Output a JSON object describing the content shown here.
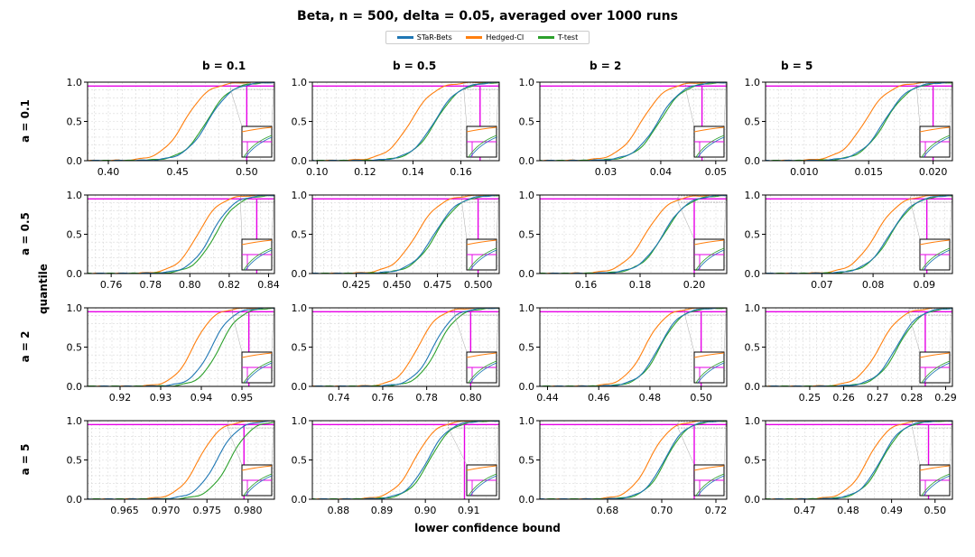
{
  "figure": {
    "title": "Beta,  n = 500,  delta = 0.05, averaged over 1000 runs",
    "xlabel": "lower confidence bound",
    "ylabel": "quantile"
  },
  "legend": [
    {
      "label": "STaR-Bets",
      "color": "#1f77b4"
    },
    {
      "label": "Hedged-CI",
      "color": "#ff7f0e"
    },
    {
      "label": "T-test",
      "color": "#2ca02c"
    }
  ],
  "colors": {
    "quantile_line": "#e600e6",
    "grid": "#d9d9d9"
  },
  "column_titles": [
    "b = 0.1",
    "b = 0.5",
    "b = 2",
    "b = 5"
  ],
  "row_titles": [
    "a = 0.1",
    "a = 0.5",
    "a = 2",
    "a = 5"
  ],
  "chart_data": [
    {
      "type": "line",
      "row": 0,
      "col": 0,
      "xlim": [
        0.385,
        0.52
      ],
      "ylim": [
        0,
        1
      ],
      "ticks": [
        0.4,
        0.45,
        0.5
      ],
      "tick_labels": [
        "0.40",
        "0.45",
        "0.50"
      ],
      "yticks": [
        "0.0",
        "0.5",
        "1.0"
      ],
      "quantile_level": 0.95,
      "quantile_x": 0.5,
      "series": [
        {
          "name": "STaR-Bets",
          "median": 0.472,
          "width": 0.0145
        },
        {
          "name": "Hedged-CI",
          "median": 0.455,
          "width": 0.0145
        },
        {
          "name": "T-test",
          "median": 0.471,
          "width": 0.0145
        }
      ]
    },
    {
      "type": "line",
      "row": 0,
      "col": 1,
      "xlim": [
        0.098,
        0.176
      ],
      "ylim": [
        0,
        1
      ],
      "ticks": [
        0.1,
        0.12,
        0.14,
        0.16
      ],
      "tick_labels": [
        "0.10",
        "0.12",
        "0.14",
        "0.16"
      ],
      "yticks": [
        "0.0",
        "0.5",
        "1.0"
      ],
      "quantile_level": 0.95,
      "quantile_x": 0.168,
      "series": [
        {
          "name": "STaR-Bets",
          "median": 0.149,
          "width": 0.0085
        },
        {
          "name": "Hedged-CI",
          "median": 0.139,
          "width": 0.0085
        },
        {
          "name": "T-test",
          "median": 0.1495,
          "width": 0.0085
        }
      ]
    },
    {
      "type": "line",
      "row": 0,
      "col": 2,
      "xlim": [
        0.018,
        0.052
      ],
      "ylim": [
        0,
        1
      ],
      "ticks": [
        0.03,
        0.04,
        0.05
      ],
      "tick_labels": [
        "0.03",
        "0.04",
        "0.05"
      ],
      "yticks": [
        "0.0",
        "0.5",
        "1.0"
      ],
      "quantile_level": 0.95,
      "quantile_x": 0.0475,
      "series": [
        {
          "name": "STaR-Bets",
          "median": 0.0395,
          "width": 0.0037
        },
        {
          "name": "Hedged-CI",
          "median": 0.0365,
          "width": 0.0037
        },
        {
          "name": "T-test",
          "median": 0.0398,
          "width": 0.0037
        }
      ]
    },
    {
      "type": "line",
      "row": 0,
      "col": 3,
      "xlim": [
        0.007,
        0.0215
      ],
      "ylim": [
        0,
        1
      ],
      "ticks": [
        0.01,
        0.015,
        0.02
      ],
      "tick_labels": [
        "0.010",
        "0.015",
        "0.020"
      ],
      "yticks": [
        "0.0",
        "0.5",
        "1.0"
      ],
      "quantile_level": 0.95,
      "quantile_x": 0.02,
      "series": [
        {
          "name": "STaR-Bets",
          "median": 0.0162,
          "width": 0.0016
        },
        {
          "name": "Hedged-CI",
          "median": 0.0147,
          "width": 0.0016
        },
        {
          "name": "T-test",
          "median": 0.0163,
          "width": 0.0016
        }
      ]
    },
    {
      "type": "line",
      "row": 1,
      "col": 0,
      "xlim": [
        0.748,
        0.843
      ],
      "ylim": [
        0,
        1
      ],
      "ticks": [
        0.76,
        0.78,
        0.8,
        0.82,
        0.84
      ],
      "tick_labels": [
        "0.76",
        "0.78",
        "0.80",
        "0.82",
        "0.84"
      ],
      "yticks": [
        "0.0",
        "0.5",
        "1.0"
      ],
      "quantile_level": 0.95,
      "quantile_x": 0.834,
      "series": [
        {
          "name": "STaR-Bets",
          "median": 0.811,
          "width": 0.0095
        },
        {
          "name": "Hedged-CI",
          "median": 0.804,
          "width": 0.0095
        },
        {
          "name": "T-test",
          "median": 0.813,
          "width": 0.0095
        }
      ]
    },
    {
      "type": "line",
      "row": 1,
      "col": 1,
      "xlim": [
        0.398,
        0.513
      ],
      "ylim": [
        0,
        1
      ],
      "ticks": [
        0.425,
        0.45,
        0.475,
        0.5
      ],
      "tick_labels": [
        "0.425",
        "0.450",
        "0.475",
        "0.500"
      ],
      "yticks": [
        "0.0",
        "0.5",
        "1.0"
      ],
      "quantile_level": 0.95,
      "quantile_x": 0.5,
      "series": [
        {
          "name": "STaR-Bets",
          "median": 0.473,
          "width": 0.0125
        },
        {
          "name": "Hedged-CI",
          "median": 0.462,
          "width": 0.0125
        },
        {
          "name": "T-test",
          "median": 0.474,
          "width": 0.0125
        }
      ]
    },
    {
      "type": "line",
      "row": 1,
      "col": 2,
      "xlim": [
        0.143,
        0.212
      ],
      "ylim": [
        0,
        1
      ],
      "ticks": [
        0.16,
        0.18,
        0.2
      ],
      "tick_labels": [
        "0.16",
        "0.18",
        "0.20"
      ],
      "yticks": [
        "0.0",
        "0.5",
        "1.0"
      ],
      "quantile_level": 0.95,
      "quantile_x": 0.2,
      "series": [
        {
          "name": "STaR-Bets",
          "median": 0.1885,
          "width": 0.0075
        },
        {
          "name": "Hedged-CI",
          "median": 0.182,
          "width": 0.0075
        },
        {
          "name": "T-test",
          "median": 0.1888,
          "width": 0.0075
        }
      ]
    },
    {
      "type": "line",
      "row": 1,
      "col": 3,
      "xlim": [
        0.059,
        0.0955
      ],
      "ylim": [
        0,
        1
      ],
      "ticks": [
        0.07,
        0.08,
        0.09
      ],
      "tick_labels": [
        "0.07",
        "0.08",
        "0.09"
      ],
      "yticks": [
        "0.0",
        "0.5",
        "1.0"
      ],
      "quantile_level": 0.95,
      "quantile_x": 0.0905,
      "series": [
        {
          "name": "STaR-Bets",
          "median": 0.0833,
          "width": 0.004
        },
        {
          "name": "Hedged-CI",
          "median": 0.0805,
          "width": 0.004
        },
        {
          "name": "T-test",
          "median": 0.0835,
          "width": 0.004
        }
      ]
    },
    {
      "type": "line",
      "row": 2,
      "col": 0,
      "xlim": [
        0.912,
        0.958
      ],
      "ylim": [
        0,
        1
      ],
      "ticks": [
        0.92,
        0.93,
        0.94,
        0.95
      ],
      "tick_labels": [
        "0.92",
        "0.93",
        "0.94",
        "0.95"
      ],
      "yticks": [
        "0.0",
        "0.5",
        "1.0"
      ],
      "quantile_level": 0.95,
      "quantile_x": 0.9517,
      "series": [
        {
          "name": "STaR-Bets",
          "median": 0.9425,
          "width": 0.0042
        },
        {
          "name": "Hedged-CI",
          "median": 0.938,
          "width": 0.0042
        },
        {
          "name": "T-test",
          "median": 0.9445,
          "width": 0.0042
        }
      ]
    },
    {
      "type": "line",
      "row": 2,
      "col": 1,
      "xlim": [
        0.728,
        0.813
      ],
      "ylim": [
        0,
        1
      ],
      "ticks": [
        0.74,
        0.76,
        0.78,
        0.8
      ],
      "tick_labels": [
        "0.74",
        "0.76",
        "0.78",
        "0.80"
      ],
      "yticks": [
        "0.0",
        "0.5",
        "1.0"
      ],
      "quantile_level": 0.95,
      "quantile_x": 0.8,
      "series": [
        {
          "name": "STaR-Bets",
          "median": 0.783,
          "width": 0.008
        },
        {
          "name": "Hedged-CI",
          "median": 0.776,
          "width": 0.008
        },
        {
          "name": "T-test",
          "median": 0.785,
          "width": 0.008
        }
      ]
    },
    {
      "type": "line",
      "row": 2,
      "col": 2,
      "xlim": [
        0.437,
        0.51
      ],
      "ylim": [
        0,
        1
      ],
      "ticks": [
        0.44,
        0.46,
        0.48,
        0.5
      ],
      "tick_labels": [
        "0.44",
        "0.46",
        "0.48",
        "0.50"
      ],
      "yticks": [
        "0.0",
        "0.5",
        "1.0"
      ],
      "quantile_level": 0.95,
      "quantile_x": 0.5,
      "series": [
        {
          "name": "STaR-Bets",
          "median": 0.4835,
          "width": 0.007
        },
        {
          "name": "Hedged-CI",
          "median": 0.478,
          "width": 0.007
        },
        {
          "name": "T-test",
          "median": 0.484,
          "width": 0.007
        }
      ]
    },
    {
      "type": "line",
      "row": 2,
      "col": 3,
      "xlim": [
        0.237,
        0.292
      ],
      "ylim": [
        0,
        1
      ],
      "ticks": [
        0.25,
        0.26,
        0.27,
        0.28,
        0.29
      ],
      "tick_labels": [
        "0.25",
        "0.26",
        "0.27",
        "0.28",
        "0.29"
      ],
      "yticks": [
        "0.0",
        "0.5",
        "1.0"
      ],
      "quantile_level": 0.95,
      "quantile_x": 0.284,
      "series": [
        {
          "name": "STaR-Bets",
          "median": 0.2755,
          "width": 0.0055
        },
        {
          "name": "Hedged-CI",
          "median": 0.2705,
          "width": 0.0055
        },
        {
          "name": "T-test",
          "median": 0.276,
          "width": 0.0055
        }
      ]
    },
    {
      "type": "line",
      "row": 3,
      "col": 0,
      "xlim": [
        0.9605,
        0.9832
      ],
      "ylim": [
        0,
        1
      ],
      "ticks": [
        0.965,
        0.97,
        0.975,
        0.98
      ],
      "tick_labels": [
        "0.965",
        "0.970",
        "0.975",
        "0.980"
      ],
      "yticks": [
        "0.0",
        "0.5",
        "1.0"
      ],
      "quantile_level": 0.95,
      "quantile_x": 0.9795,
      "series": [
        {
          "name": "STaR-Bets",
          "median": 0.9762,
          "width": 0.0022
        },
        {
          "name": "Hedged-CI",
          "median": 0.974,
          "width": 0.0022
        },
        {
          "name": "T-test",
          "median": 0.9778,
          "width": 0.0022
        }
      ]
    },
    {
      "type": "line",
      "row": 3,
      "col": 1,
      "xlim": [
        0.874,
        0.917
      ],
      "ylim": [
        0,
        1
      ],
      "ticks": [
        0.88,
        0.89,
        0.9,
        0.91
      ],
      "tick_labels": [
        "0.88",
        "0.89",
        "0.90",
        "0.91"
      ],
      "yticks": [
        "0.0",
        "0.5",
        "1.0"
      ],
      "quantile_level": 0.95,
      "quantile_x": 0.909,
      "series": [
        {
          "name": "STaR-Bets",
          "median": 0.9005,
          "width": 0.0042
        },
        {
          "name": "Hedged-CI",
          "median": 0.8975,
          "width": 0.0042
        },
        {
          "name": "T-test",
          "median": 0.901,
          "width": 0.0042
        }
      ]
    },
    {
      "type": "line",
      "row": 3,
      "col": 2,
      "xlim": [
        0.655,
        0.724
      ],
      "ylim": [
        0,
        1
      ],
      "ticks": [
        0.68,
        0.7,
        0.72
      ],
      "tick_labels": [
        "0.68",
        "0.70",
        "0.72"
      ],
      "yticks": [
        "0.0",
        "0.5",
        "1.0"
      ],
      "quantile_level": 0.95,
      "quantile_x": 0.712,
      "series": [
        {
          "name": "STaR-Bets",
          "median": 0.701,
          "width": 0.0065
        },
        {
          "name": "Hedged-CI",
          "median": 0.6955,
          "width": 0.0065
        },
        {
          "name": "T-test",
          "median": 0.7015,
          "width": 0.0065
        }
      ]
    },
    {
      "type": "line",
      "row": 3,
      "col": 3,
      "xlim": [
        0.461,
        0.504
      ],
      "ylim": [
        0,
        1
      ],
      "ticks": [
        0.47,
        0.48,
        0.49,
        0.5
      ],
      "tick_labels": [
        "0.47",
        "0.48",
        "0.49",
        "0.50"
      ],
      "yticks": [
        "0.0",
        "0.5",
        "1.0"
      ],
      "quantile_level": 0.95,
      "quantile_x": 0.4985,
      "series": [
        {
          "name": "STaR-Bets",
          "median": 0.4875,
          "width": 0.0042
        },
        {
          "name": "Hedged-CI",
          "median": 0.4845,
          "width": 0.0042
        },
        {
          "name": "T-test",
          "median": 0.4878,
          "width": 0.0042
        }
      ]
    }
  ]
}
